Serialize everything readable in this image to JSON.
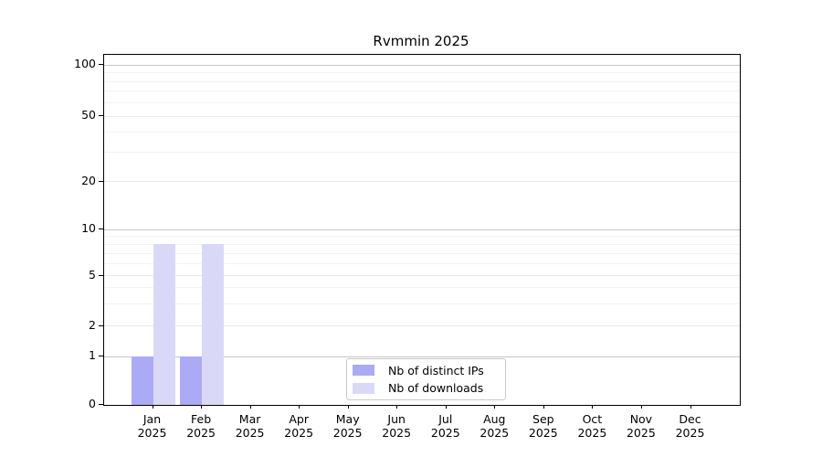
{
  "chart_data": {
    "type": "bar",
    "title": "Rvmmin 2025",
    "categories": [
      "Jan 2025",
      "Feb 2025",
      "Mar 2025",
      "Apr 2025",
      "May 2025",
      "Jun 2025",
      "Jul 2025",
      "Aug 2025",
      "Sep 2025",
      "Oct 2025",
      "Nov 2025",
      "Dec 2025"
    ],
    "x_tick_labels": [
      [
        "Jan",
        "2025"
      ],
      [
        "Feb",
        "2025"
      ],
      [
        "Mar",
        "2025"
      ],
      [
        "Apr",
        "2025"
      ],
      [
        "May",
        "2025"
      ],
      [
        "Jun",
        "2025"
      ],
      [
        "Jul",
        "2025"
      ],
      [
        "Aug",
        "2025"
      ],
      [
        "Sep",
        "2025"
      ],
      [
        "Oct",
        "2025"
      ],
      [
        "Nov",
        "2025"
      ],
      [
        "Dec",
        "2025"
      ]
    ],
    "series": [
      {
        "name": "Nb of distinct IPs",
        "color": "#ababf5",
        "values": [
          1,
          1,
          0,
          0,
          0,
          0,
          0,
          0,
          0,
          0,
          0,
          0
        ]
      },
      {
        "name": "Nb of downloads",
        "color": "#d9d9f7",
        "values": [
          8,
          8,
          0,
          0,
          0,
          0,
          0,
          0,
          0,
          0,
          0,
          0
        ]
      }
    ],
    "y_axis": {
      "scale": "symlog",
      "tick_values": [
        0,
        1,
        2,
        5,
        10,
        20,
        50,
        100
      ],
      "tick_labels": [
        "0",
        "1",
        "2",
        "5",
        "10",
        "20",
        "50",
        "100"
      ],
      "major_grid_values": [
        1,
        10,
        100
      ],
      "labeled_minor_grid_values": [
        2,
        5,
        20,
        50
      ],
      "minor_grid_values": [
        3,
        4,
        6,
        7,
        8,
        9,
        30,
        40,
        60,
        70,
        80,
        90
      ],
      "ylim": [
        0,
        115
      ]
    },
    "legend": {
      "location": "lower center",
      "items": [
        {
          "label": "Nb of distinct IPs",
          "swatch_color": "#ababf5"
        },
        {
          "label": "Nb of downloads",
          "swatch_color": "#d9d9f7"
        }
      ]
    },
    "grid": {
      "major_color": "#c6c6c6",
      "labeled_minor_color": "#e9e9e9",
      "minor_color": "#f3f3f3"
    },
    "colors": {
      "background": "#ffffff",
      "spine": "#000000",
      "text": "#000000"
    }
  }
}
